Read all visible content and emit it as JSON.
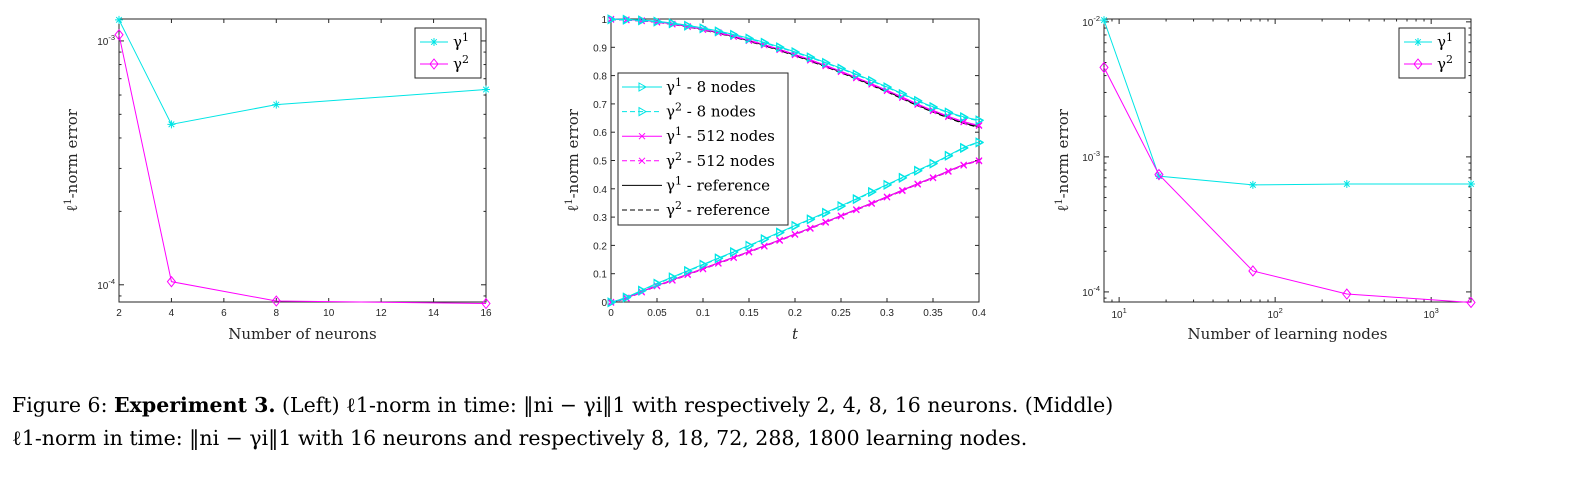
{
  "chart_data": [
    {
      "type": "line",
      "xscale": "linear",
      "yscale": "log",
      "xlim": [
        2,
        16
      ],
      "ylim": [
        8.5e-05,
        0.00123
      ],
      "xticks": [
        "2",
        "4",
        "6",
        "8",
        "10",
        "12",
        "14",
        "16"
      ],
      "yticks": [
        "10-3",
        "10-4"
      ],
      "xlabel": "Number of neurons",
      "ylabel": "ℓ1-norm error",
      "legend_position": "top-right",
      "series": [
        {
          "name": "γ1",
          "color": "#00e5e5",
          "marker": "star",
          "x": [
            2,
            4,
            8,
            16
          ],
          "y": [
            0.00122,
            0.000455,
            0.000548,
            0.000632
          ]
        },
        {
          "name": "γ2",
          "color": "#ff00ff",
          "marker": "diamond",
          "x": [
            2,
            4,
            8,
            16
          ],
          "y": [
            0.00106,
            0.000103,
            8.58e-05,
            8.38e-05
          ]
        }
      ]
    },
    {
      "type": "line",
      "xscale": "linear",
      "yscale": "linear",
      "xlim": [
        0,
        0.4
      ],
      "ylim": [
        0,
        1
      ],
      "xticks": [
        "0",
        "0.05",
        "0.1",
        "0.15",
        "0.2",
        "0.25",
        "0.3",
        "0.35",
        "0.4"
      ],
      "yticks": [
        "0",
        "0.1",
        "0.2",
        "0.3",
        "0.4",
        "0.5",
        "0.6",
        "0.7",
        "0.8",
        "0.9",
        "1"
      ],
      "xlabel": "t",
      "ylabel": "ℓ1-norm error",
      "legend_position": "middle-left",
      "series": [
        {
          "name": "γ1 - 8 nodes",
          "color": "#00e5e5",
          "line": "solid",
          "marker": "triangle-right",
          "curve": "pair_8nodes"
        },
        {
          "name": "γ2 - 8 nodes",
          "color": "#00e5e5",
          "line": "dashed",
          "marker": "triangle-right",
          "curve": "pair_8nodes"
        },
        {
          "name": "γ1 - 512 nodes",
          "color": "#ff00ff",
          "line": "solid",
          "marker": "x",
          "curve": "pair_512nodes"
        },
        {
          "name": "γ2 - 512 nodes",
          "color": "#ff00ff",
          "line": "dashed",
          "marker": "x",
          "curve": "pair_512nodes"
        },
        {
          "name": "γ1 - reference",
          "color": "#000000",
          "line": "solid",
          "marker": "none",
          "curve": "pair_reference"
        },
        {
          "name": "γ2 - reference",
          "color": "#000000",
          "line": "dashed",
          "marker": "none",
          "curve": "pair_reference"
        }
      ],
      "curves": {
        "pair_8nodes": {
          "x": [
            0,
            0.05,
            0.1,
            0.15,
            0.2,
            0.25,
            0.3,
            0.35,
            0.4
          ],
          "decreasing": [
            1.0,
            0.992,
            0.968,
            0.932,
            0.884,
            0.826,
            0.76,
            0.69,
            0.643
          ],
          "increasing": [
            0.0,
            0.066,
            0.133,
            0.2,
            0.27,
            0.34,
            0.415,
            0.49,
            0.565
          ]
        },
        "pair_512nodes": {
          "x": [
            0,
            0.05,
            0.1,
            0.15,
            0.2,
            0.25,
            0.3,
            0.35,
            0.4
          ],
          "decreasing": [
            1.0,
            0.99,
            0.964,
            0.925,
            0.875,
            0.815,
            0.748,
            0.677,
            0.625
          ],
          "increasing": [
            0.0,
            0.058,
            0.118,
            0.178,
            0.24,
            0.305,
            0.372,
            0.44,
            0.5
          ]
        },
        "pair_reference": {
          "x": [
            0,
            0.05,
            0.1,
            0.15,
            0.2,
            0.25,
            0.3,
            0.35,
            0.4
          ],
          "decreasing": [
            1.0,
            0.99,
            0.963,
            0.923,
            0.872,
            0.812,
            0.744,
            0.673,
            0.62
          ],
          "increasing": [
            0.0,
            0.058,
            0.118,
            0.178,
            0.24,
            0.305,
            0.372,
            0.44,
            0.5
          ]
        }
      }
    },
    {
      "type": "line",
      "xscale": "log",
      "yscale": "log",
      "xlim": [
        8,
        1800
      ],
      "ylim": [
        8.42e-05,
        0.0105
      ],
      "xticks": [
        "10^1",
        "10^2",
        "10^3"
      ],
      "xtick_values": [
        10,
        100,
        1000
      ],
      "yticks": [
        "10-2",
        "10-3",
        "10-4"
      ],
      "ytick_values": [
        0.01,
        0.001,
        0.0001
      ],
      "xlabel": "Number of learning nodes",
      "ylabel": "ℓ1-norm error",
      "legend_position": "top-right",
      "series": [
        {
          "name": "γ1",
          "color": "#00e5e5",
          "marker": "star",
          "x": [
            8,
            18,
            72,
            288,
            1800
          ],
          "y": [
            0.0103,
            0.00072,
            0.00062,
            0.00063,
            0.00063
          ]
        },
        {
          "name": "γ2",
          "color": "#ff00ff",
          "marker": "diamond",
          "x": [
            8,
            18,
            72,
            288,
            1800
          ],
          "y": [
            0.0046,
            0.00074,
            0.000143,
            9.65e-05,
            8.35e-05
          ]
        }
      ]
    }
  ],
  "caption": {
    "line1": {
      "prefix": "Figure 6: ",
      "bold": "Experiment 3.",
      "rest": " (Left) ℓ1-norm in time: ‖ni − γi‖1 with respectively 2, 4, 8, 16 neurons. (Middle)"
    },
    "line2": "ℓ1-norm in time: ‖ni − γi‖1 with 16 neurons and respectively 8, 18, 72, 288, 1800 learning nodes."
  }
}
